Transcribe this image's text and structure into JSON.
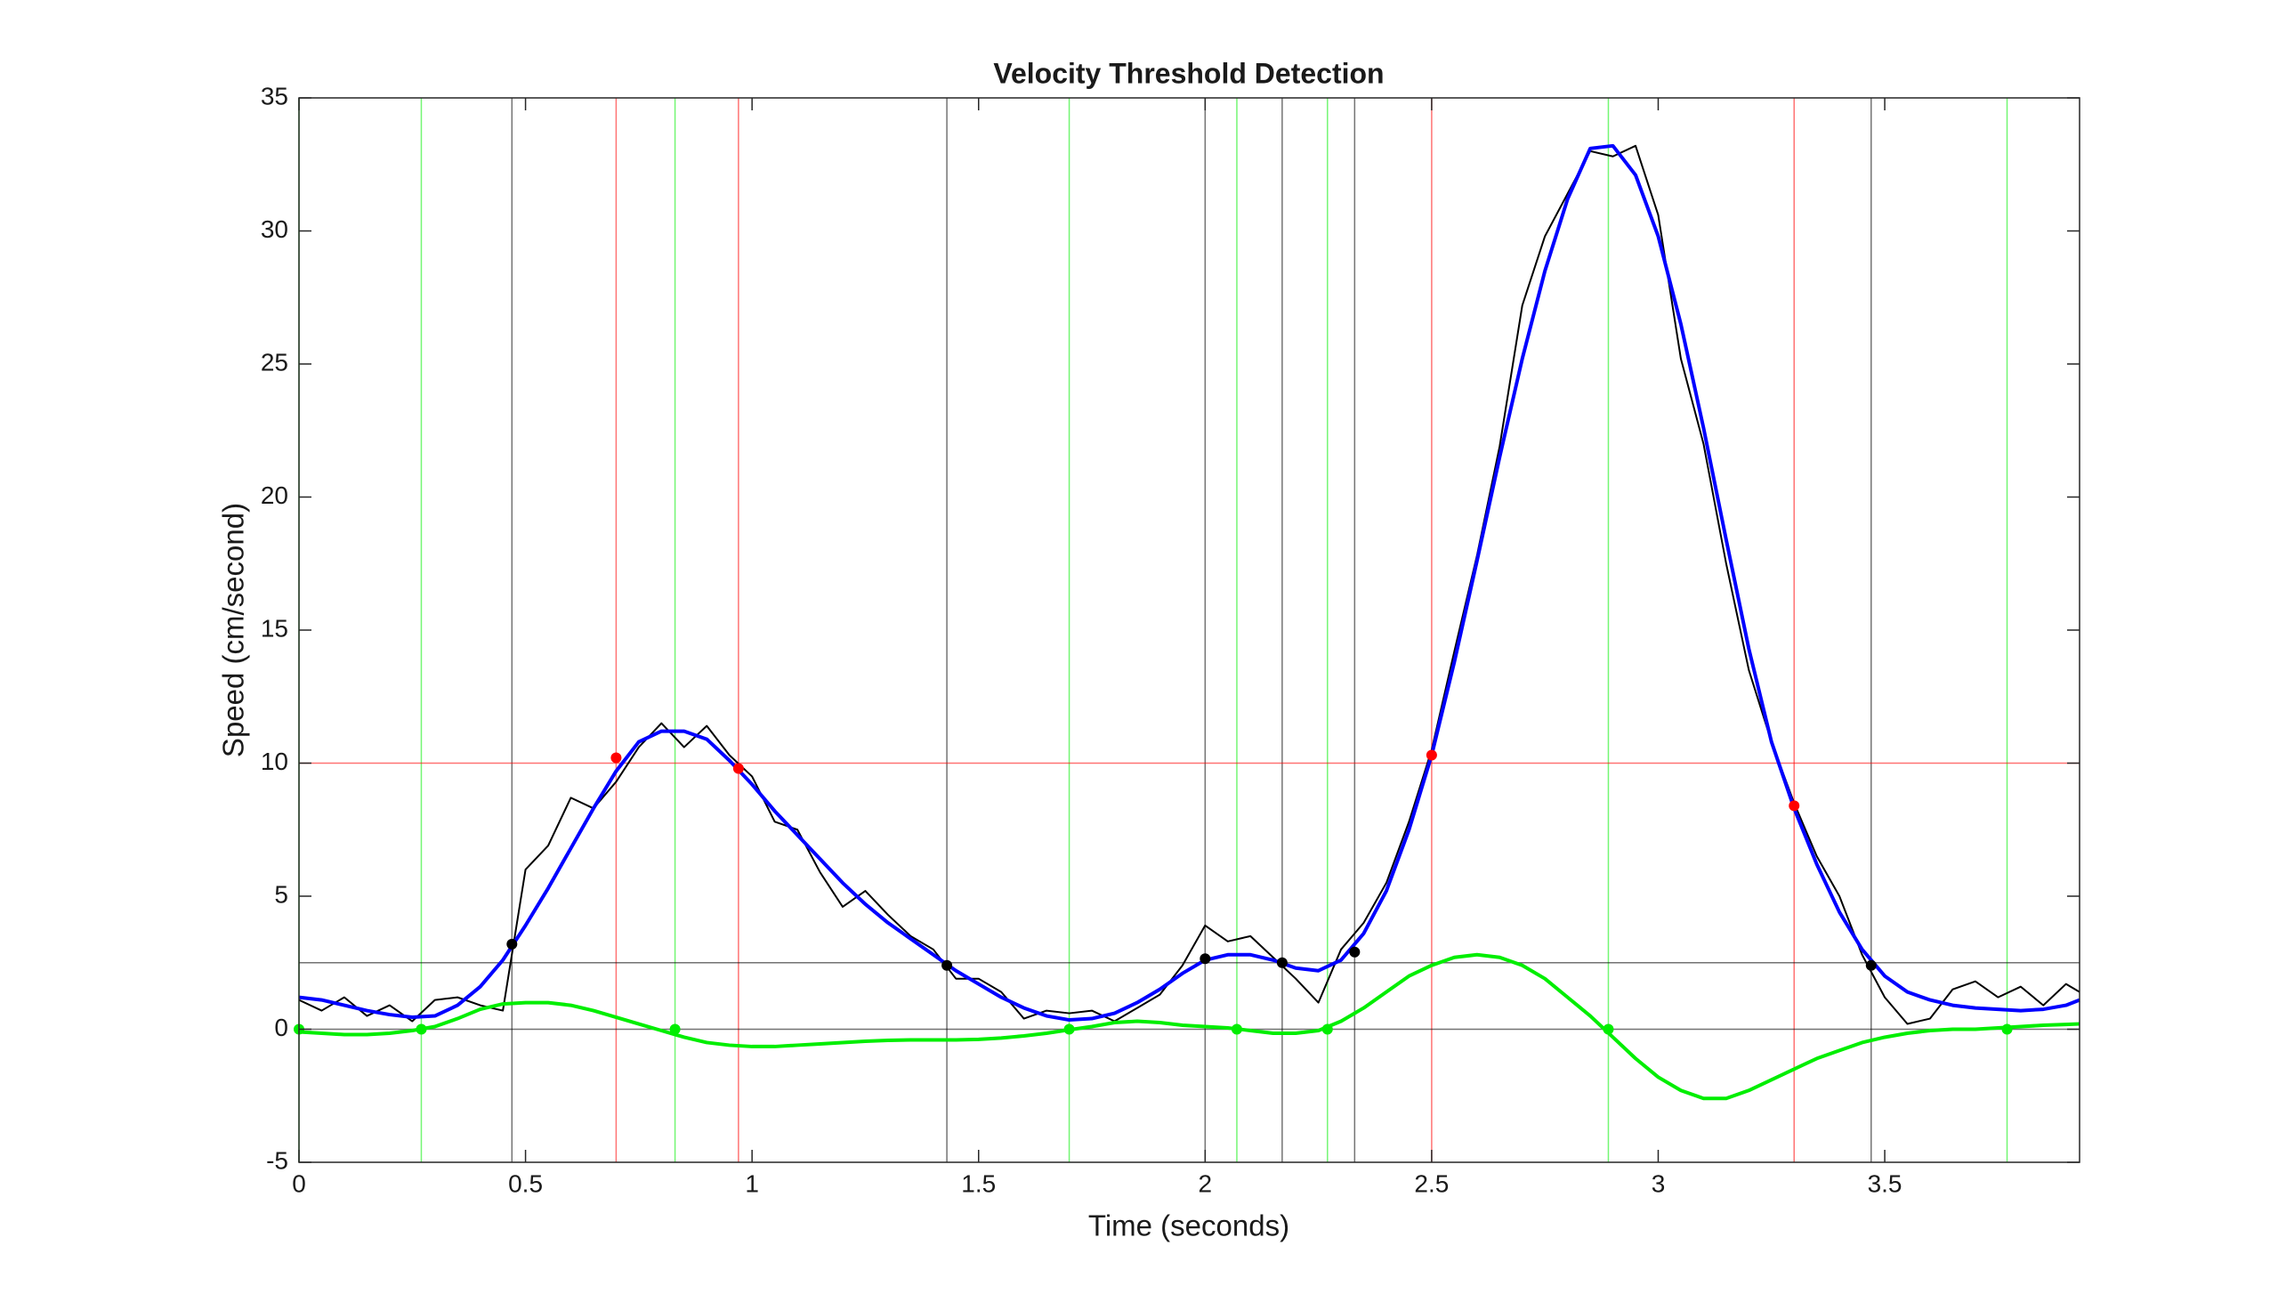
{
  "chart_data": {
    "type": "line",
    "title": "Velocity Threshold Detection",
    "xlabel": "Time (seconds)",
    "ylabel": "Speed (cm/second)",
    "xlim": [
      0,
      3.93
    ],
    "ylim": [
      -5,
      35
    ],
    "xticks": [
      0,
      0.5,
      1,
      1.5,
      2,
      2.5,
      3,
      3.5
    ],
    "yticks": [
      -5,
      0,
      5,
      10,
      15,
      20,
      25,
      30,
      35
    ],
    "x": [
      0,
      0.05,
      0.1,
      0.15,
      0.2,
      0.25,
      0.3,
      0.35,
      0.4,
      0.45,
      0.5,
      0.55,
      0.6,
      0.65,
      0.7,
      0.75,
      0.8,
      0.85,
      0.9,
      0.95,
      1.0,
      1.05,
      1.1,
      1.15,
      1.2,
      1.25,
      1.3,
      1.35,
      1.4,
      1.45,
      1.5,
      1.55,
      1.6,
      1.65,
      1.7,
      1.75,
      1.8,
      1.85,
      1.9,
      1.95,
      2.0,
      2.05,
      2.1,
      2.15,
      2.2,
      2.25,
      2.3,
      2.35,
      2.4,
      2.45,
      2.5,
      2.55,
      2.6,
      2.65,
      2.7,
      2.75,
      2.8,
      2.85,
      2.9,
      2.95,
      3.0,
      3.05,
      3.1,
      3.15,
      3.2,
      3.25,
      3.3,
      3.35,
      3.4,
      3.45,
      3.5,
      3.55,
      3.6,
      3.65,
      3.7,
      3.75,
      3.8,
      3.85,
      3.9,
      3.93
    ],
    "series": [
      {
        "color": "#000000",
        "width": 2,
        "values": [
          1.1,
          0.7,
          1.2,
          0.5,
          0.9,
          0.3,
          1.1,
          1.2,
          0.9,
          0.7,
          6.0,
          6.9,
          8.7,
          8.3,
          9.3,
          10.6,
          11.5,
          10.6,
          11.4,
          10.3,
          9.5,
          7.8,
          7.5,
          5.9,
          4.6,
          5.2,
          4.3,
          3.5,
          3.0,
          1.9,
          1.9,
          1.4,
          0.4,
          0.7,
          0.6,
          0.7,
          0.3,
          0.8,
          1.3,
          2.4,
          3.9,
          3.3,
          3.5,
          2.7,
          1.9,
          1.0,
          3.0,
          4.0,
          5.5,
          7.8,
          10.5,
          14.2,
          17.8,
          21.9,
          27.2,
          29.8,
          31.4,
          33.0,
          32.8,
          33.2,
          30.6,
          25.2,
          22.0,
          17.5,
          13.5,
          10.8,
          8.5,
          6.5,
          5.0,
          2.8,
          1.2,
          0.2,
          0.4,
          1.5,
          1.8,
          1.2,
          1.6,
          0.9,
          1.7,
          1.4
        ]
      },
      {
        "color": "#0000ff",
        "width": 4,
        "values": [
          1.2,
          1.1,
          0.9,
          0.7,
          0.55,
          0.45,
          0.5,
          0.9,
          1.6,
          2.6,
          3.9,
          5.3,
          6.8,
          8.3,
          9.7,
          10.8,
          11.2,
          11.2,
          10.9,
          10.1,
          9.2,
          8.2,
          7.3,
          6.4,
          5.5,
          4.7,
          4.0,
          3.4,
          2.8,
          2.2,
          1.7,
          1.2,
          0.8,
          0.5,
          0.35,
          0.4,
          0.6,
          1.0,
          1.5,
          2.1,
          2.6,
          2.8,
          2.8,
          2.6,
          2.3,
          2.2,
          2.6,
          3.6,
          5.2,
          7.5,
          10.3,
          13.8,
          17.6,
          21.5,
          25.2,
          28.5,
          31.2,
          33.1,
          33.2,
          32.1,
          29.8,
          26.5,
          22.6,
          18.4,
          14.3,
          10.8,
          8.3,
          6.2,
          4.4,
          3.0,
          2.0,
          1.4,
          1.1,
          0.9,
          0.8,
          0.75,
          0.7,
          0.75,
          0.9,
          1.1
        ]
      },
      {
        "color": "#00ee00",
        "width": 4,
        "values": [
          -0.1,
          -0.15,
          -0.2,
          -0.2,
          -0.15,
          -0.05,
          0.1,
          0.4,
          0.75,
          0.95,
          1.0,
          1.0,
          0.9,
          0.7,
          0.45,
          0.2,
          -0.05,
          -0.3,
          -0.5,
          -0.6,
          -0.65,
          -0.65,
          -0.6,
          -0.55,
          -0.5,
          -0.45,
          -0.42,
          -0.4,
          -0.4,
          -0.4,
          -0.38,
          -0.33,
          -0.25,
          -0.15,
          -0.02,
          0.1,
          0.25,
          0.3,
          0.25,
          0.15,
          0.1,
          0.05,
          -0.05,
          -0.15,
          -0.15,
          -0.05,
          0.3,
          0.8,
          1.4,
          2.0,
          2.4,
          2.7,
          2.8,
          2.7,
          2.4,
          1.9,
          1.2,
          0.5,
          -0.3,
          -1.1,
          -1.8,
          -2.3,
          -2.6,
          -2.6,
          -2.3,
          -1.9,
          -1.5,
          -1.1,
          -0.8,
          -0.5,
          -0.3,
          -0.15,
          -0.05,
          0.0,
          0.0,
          0.05,
          0.1,
          0.15,
          0.18,
          0.2
        ]
      }
    ],
    "points": [
      {
        "color": "#ff0000",
        "x": [
          0.7,
          0.97,
          2.5,
          3.3
        ],
        "values": [
          10.2,
          9.8,
          10.3,
          8.4
        ]
      },
      {
        "color": "#000000",
        "x": [
          0.47,
          1.43,
          2.0,
          2.17,
          2.33,
          3.47
        ],
        "values": [
          3.2,
          2.4,
          2.65,
          2.5,
          2.9,
          2.4
        ]
      },
      {
        "color": "#00ee00",
        "x": [
          0,
          0.27,
          0.83,
          1.7,
          2.07,
          2.27,
          2.89,
          3.77
        ],
        "values": [
          0,
          0,
          0,
          0,
          0,
          0,
          0,
          0
        ]
      }
    ],
    "hlines": [
      {
        "value": 10,
        "color": "#ff0000"
      },
      {
        "value": 2.5,
        "color": "#000000"
      },
      {
        "value": 0,
        "color": "#000000"
      }
    ]
  }
}
